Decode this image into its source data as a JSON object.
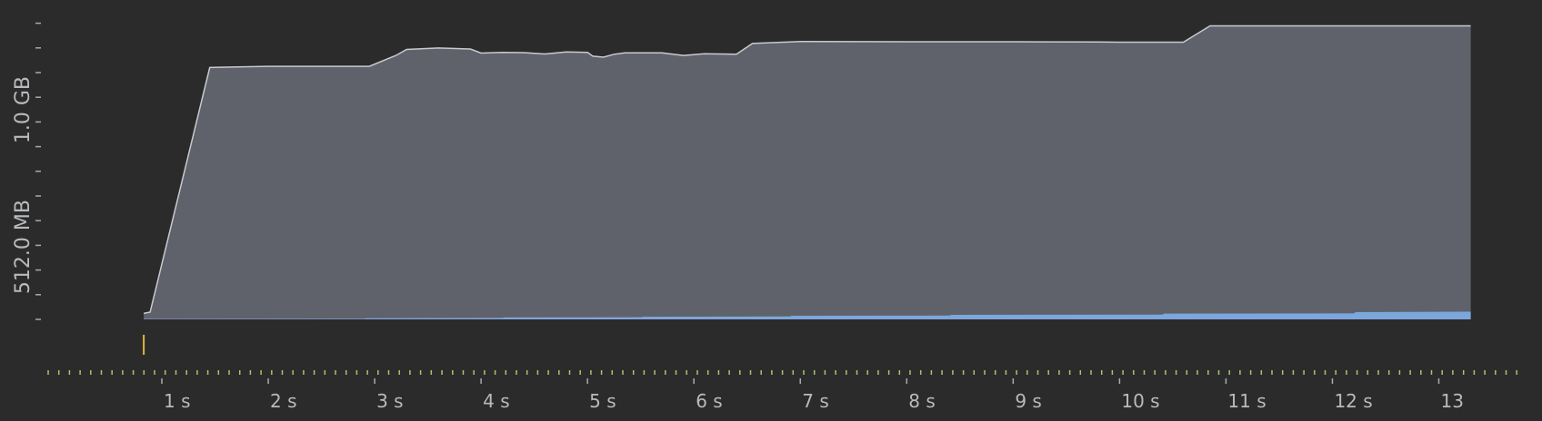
{
  "chart_data": {
    "type": "area",
    "title": "",
    "xlabel": "",
    "ylabel": "",
    "x_unit": "s",
    "xlim": [
      0,
      13.3
    ],
    "ylim_mb": [
      0,
      1280
    ],
    "x_ticks": [
      {
        "value": 1,
        "label": "1 s"
      },
      {
        "value": 2,
        "label": "2 s"
      },
      {
        "value": 3,
        "label": "3 s"
      },
      {
        "value": 4,
        "label": "4 s"
      },
      {
        "value": 5,
        "label": "5 s"
      },
      {
        "value": 6,
        "label": "6 s"
      },
      {
        "value": 7,
        "label": "7 s"
      },
      {
        "value": 8,
        "label": "8 s"
      },
      {
        "value": 9,
        "label": "9 s"
      },
      {
        "value": 10,
        "label": "10 s"
      },
      {
        "value": 11,
        "label": "11 s"
      },
      {
        "value": 12,
        "label": "12 s"
      },
      {
        "value": 13,
        "label": "13"
      }
    ],
    "y_labels": [
      {
        "value": 512,
        "label": "512.0 MB"
      },
      {
        "value": 1024,
        "label": "1.0 GB"
      }
    ],
    "grid": false,
    "series": [
      {
        "color": "#5f626b",
        "stroke": "#c8cace",
        "points": [
          [
            0.83,
            25
          ],
          [
            0.89,
            30
          ],
          [
            1.45,
            1045
          ],
          [
            2.0,
            1050
          ],
          [
            2.5,
            1050
          ],
          [
            2.95,
            1050
          ],
          [
            3.2,
            1095
          ],
          [
            3.3,
            1120
          ],
          [
            3.6,
            1126
          ],
          [
            3.9,
            1122
          ],
          [
            4.0,
            1105
          ],
          [
            4.2,
            1108
          ],
          [
            4.4,
            1107
          ],
          [
            4.6,
            1101
          ],
          [
            4.8,
            1110
          ],
          [
            5.0,
            1108
          ],
          [
            5.05,
            1092
          ],
          [
            5.15,
            1088
          ],
          [
            5.25,
            1100
          ],
          [
            5.35,
            1106
          ],
          [
            5.5,
            1106
          ],
          [
            5.7,
            1106
          ],
          [
            5.9,
            1095
          ],
          [
            6.1,
            1102
          ],
          [
            6.4,
            1100
          ],
          [
            6.55,
            1145
          ],
          [
            7.0,
            1153
          ],
          [
            8.0,
            1152
          ],
          [
            9.0,
            1152
          ],
          [
            9.8,
            1151
          ],
          [
            10.0,
            1150
          ],
          [
            10.2,
            1150
          ],
          [
            10.6,
            1150
          ],
          [
            10.85,
            1218
          ],
          [
            11.6,
            1218
          ],
          [
            12.5,
            1218
          ],
          [
            13.3,
            1218
          ]
        ]
      },
      {
        "color": "#7aa8dc",
        "points": [
          [
            0.83,
            2
          ],
          [
            2.9,
            3
          ],
          [
            2.92,
            5
          ],
          [
            4.2,
            6
          ],
          [
            4.22,
            8
          ],
          [
            5.5,
            9
          ],
          [
            5.52,
            11
          ],
          [
            6.9,
            12
          ],
          [
            6.92,
            15
          ],
          [
            8.4,
            16
          ],
          [
            8.42,
            19
          ],
          [
            10.4,
            20
          ],
          [
            10.42,
            24
          ],
          [
            12.2,
            25
          ],
          [
            12.22,
            30
          ],
          [
            13.3,
            32
          ]
        ]
      },
      {
        "color": "#b08ad8",
        "points": [
          [
            0.83,
            1
          ],
          [
            13.3,
            1
          ]
        ]
      }
    ],
    "event_markers": [
      {
        "x": 0.83,
        "color": "#e2b441"
      }
    ]
  }
}
